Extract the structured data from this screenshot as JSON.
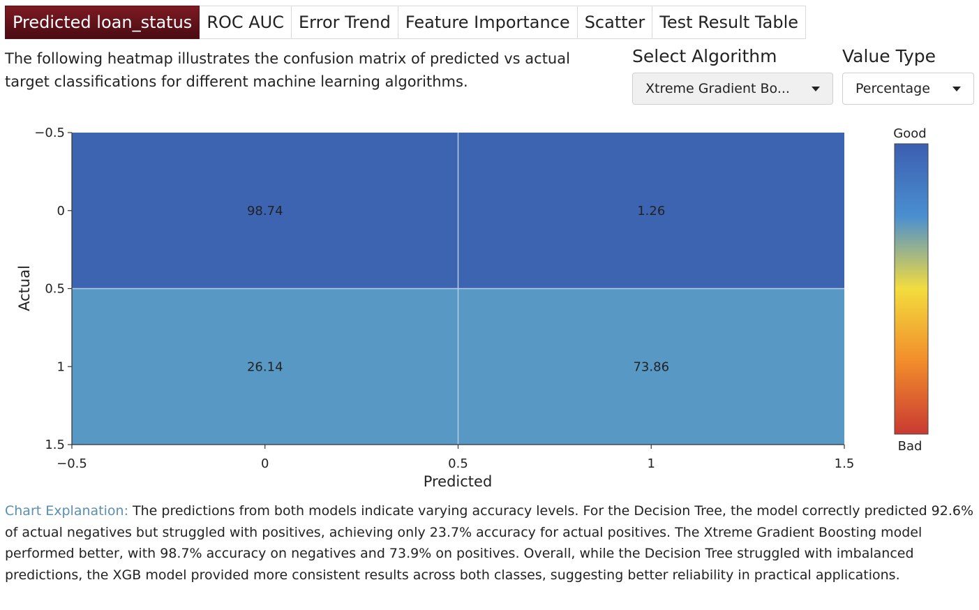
{
  "tabs": [
    {
      "label": "Predicted loan_status",
      "active": true
    },
    {
      "label": "ROC AUC",
      "active": false
    },
    {
      "label": "Error Trend",
      "active": false
    },
    {
      "label": "Feature Importance",
      "active": false
    },
    {
      "label": "Scatter",
      "active": false
    },
    {
      "label": "Test Result Table",
      "active": false
    }
  ],
  "description": "The following heatmap illustrates the confusion matrix of predicted vs actual target classifications for different machine learning algorithms.",
  "controls": {
    "algorithm": {
      "label": "Select Algorithm",
      "value": "Xtreme Gradient Bo..."
    },
    "value_type": {
      "label": "Value Type",
      "value": "Percentage"
    }
  },
  "chart_data": {
    "type": "heatmap",
    "xlabel": "Predicted",
    "ylabel": "Actual",
    "x": [
      0,
      1
    ],
    "y": [
      0,
      1
    ],
    "z": [
      [
        98.74,
        1.26
      ],
      [
        26.14,
        73.86
      ]
    ],
    "cell_labels": [
      [
        "98.74",
        "1.26"
      ],
      [
        "26.14",
        "73.86"
      ]
    ],
    "xlim": [
      -0.5,
      1.5
    ],
    "ylim": [
      -0.5,
      1.5
    ],
    "y_reversed": true,
    "x_ticks": [
      "−0.5",
      "0",
      "0.5",
      "1",
      "1.5"
    ],
    "y_ticks": [
      "−0.5",
      "0",
      "0.5",
      "1",
      "1.5"
    ],
    "colorbar": {
      "top_label": "Good",
      "bottom_label": "Bad",
      "colors": [
        "#3c5eb0",
        "#4a8fd0",
        "#f3dc3e",
        "#f28c2b",
        "#c93a32"
      ]
    },
    "cell_colors": [
      [
        "#3d64b1",
        "#3d64b1"
      ],
      [
        "#5898c4",
        "#5898c4"
      ]
    ]
  },
  "explanation": {
    "label": "Chart Explanation:",
    "text": "The predictions from both models indicate varying accuracy levels. For the Decision Tree, the model correctly predicted 92.6% of actual negatives but struggled with positives, achieving only 23.7% accuracy for actual positives. The Xtreme Gradient Boosting model performed better, with 98.7% accuracy on negatives and 73.9% on positives. Overall, while the Decision Tree struggled with imbalanced predictions, the XGB model provided more consistent results across both classes, suggesting better reliability in practical applications."
  }
}
